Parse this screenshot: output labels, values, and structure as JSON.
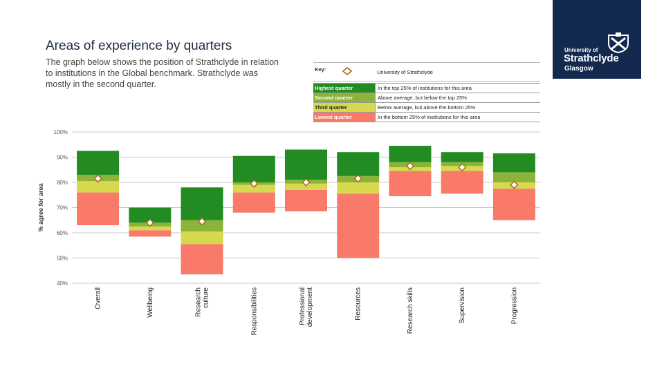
{
  "page": {
    "title": "Areas of experience by quarters",
    "subtitle": "The graph below shows the position of Strathclyde in relation to institutions in the Global benchmark. Strathclyde was mostly in the second quarter."
  },
  "logo": {
    "line1": "University of",
    "line2": "Strathclyde",
    "line3": "Glasgow"
  },
  "key": {
    "label": "Key:",
    "marker_label": "University of Strathclyde",
    "rows": [
      {
        "name": "Highest quarter",
        "desc": "In the top 25% of institutions for this area",
        "color": "#228b22",
        "text_color": "#ffffff"
      },
      {
        "name": "Second quarter",
        "desc": "Above average, but below the top 25%",
        "color": "#8cb43a",
        "text_color": "#ffffff"
      },
      {
        "name": "Third quarter",
        "desc": "Below average, but above the bottom 25%",
        "color": "#d6d84e",
        "text_color": "#222222"
      },
      {
        "name": "Lowest quarter",
        "desc": "In the bottom 25% of institutions for this area",
        "color": "#f97a68",
        "text_color": "#ffffff"
      }
    ]
  },
  "colors": {
    "highest": "#228b22",
    "second": "#8cb43a",
    "third": "#d6d84e",
    "lowest": "#f97a68",
    "marker_stroke": "#a56a1a",
    "grid": "#c8c8c8"
  },
  "chart_data": {
    "type": "stacked-range-bar",
    "ylabel": "% agree for area",
    "ylim": [
      40,
      100
    ],
    "yticks": [
      100,
      90,
      80,
      70,
      60,
      50,
      40
    ],
    "ytick_labels": [
      "100%",
      "90%",
      "80%",
      "70%",
      "60%",
      "50%",
      "40%"
    ],
    "grid": true,
    "categories": [
      {
        "label": [
          "Overall"
        ],
        "min": 63,
        "q1": 76,
        "median": 80.5,
        "q3": 83,
        "max": 92.5,
        "strathclyde": 81.5
      },
      {
        "label": [
          "Wellbeing"
        ],
        "min": 58.5,
        "q1": 61,
        "median": 62.5,
        "q3": 64,
        "max": 70,
        "strathclyde": 64
      },
      {
        "label": [
          "Research",
          "culture"
        ],
        "min": 43.5,
        "q1": 55.5,
        "median": 60.5,
        "q3": 65,
        "max": 78,
        "strathclyde": 64.5
      },
      {
        "label": [
          "Responsibilities"
        ],
        "min": 68,
        "q1": 76,
        "median": 79,
        "q3": 80,
        "max": 90.5,
        "strathclyde": 79.5
      },
      {
        "label": [
          "Professional",
          "development"
        ],
        "min": 68.5,
        "q1": 77,
        "median": 79.5,
        "q3": 81,
        "max": 93,
        "strathclyde": 80
      },
      {
        "label": [
          "Resources"
        ],
        "min": 50,
        "q1": 75.5,
        "median": 80,
        "q3": 82.5,
        "max": 92,
        "strathclyde": 81.5
      },
      {
        "label": [
          "Research skills"
        ],
        "min": 74.5,
        "q1": 84.5,
        "median": 86,
        "q3": 88,
        "max": 94.5,
        "strathclyde": 86.5
      },
      {
        "label": [
          "Supervision"
        ],
        "min": 75.5,
        "q1": 84.5,
        "median": 86.5,
        "q3": 88,
        "max": 92,
        "strathclyde": 86
      },
      {
        "label": [
          "Progression"
        ],
        "min": 65,
        "q1": 77.5,
        "median": 80,
        "q3": 84,
        "max": 91.5,
        "strathclyde": 79
      }
    ]
  }
}
